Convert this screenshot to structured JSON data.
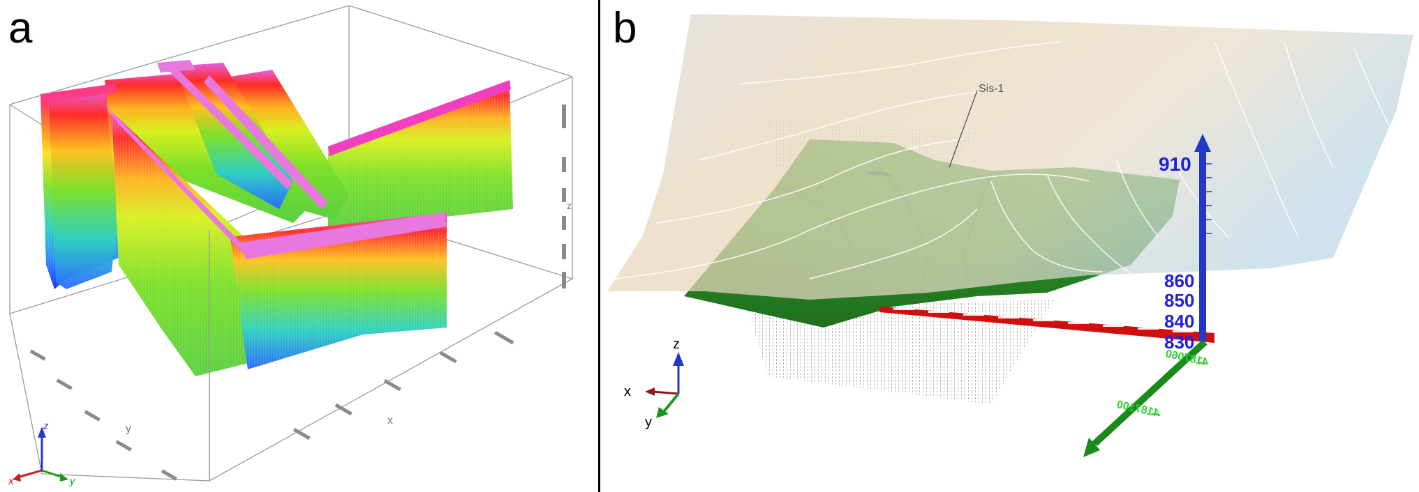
{
  "panels": {
    "a": {
      "letter": "a",
      "axis_triad": {
        "z": "z",
        "x": "x",
        "y": "y"
      },
      "box_labels": {
        "x_axis": "x",
        "y_axis": "y",
        "z_axis": "z"
      },
      "colors": {
        "low": "#1a2cff",
        "mid": "#7de02a",
        "high": "#ff2a2a",
        "peak": "#e860e0"
      }
    },
    "b": {
      "letter": "b",
      "annotation": "Sis-1",
      "elevation_ticks": [
        "910",
        "860",
        "850",
        "840",
        "830"
      ],
      "northing_labels": [
        "4187060",
        "4187100"
      ],
      "axis_triad": {
        "z": "z",
        "x": "x",
        "y": "y"
      },
      "colors": {
        "terrain": "#2e8f2a",
        "z_axis": "#2438c8",
        "x_axis": "#d01010",
        "y_axis": "#1a9a1a",
        "tick_text_blue": "#2020e0",
        "tick_text_green": "#30d030"
      }
    }
  }
}
